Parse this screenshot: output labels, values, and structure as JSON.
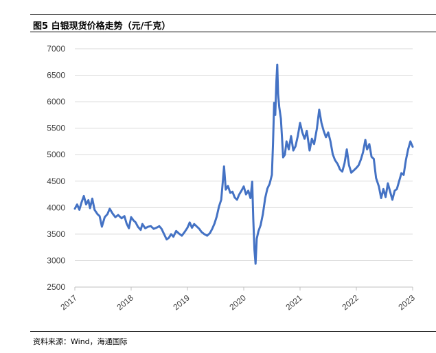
{
  "figure": {
    "title": "图5 白银现货价格走势（元/千克）",
    "source": "资料来源：Wind，海通国际"
  },
  "chart_data": {
    "type": "line",
    "title": "白银现货价格走势（元/千克）",
    "xlabel": "",
    "ylabel": "",
    "x_ticks": [
      "2017",
      "2018",
      "2019",
      "2020",
      "2021",
      "2022",
      "2023"
    ],
    "y_ticks": [
      "2500",
      "3000",
      "3500",
      "4000",
      "4500",
      "5000",
      "5500",
      "6000",
      "6500",
      "7000"
    ],
    "ylim": [
      2500,
      7000
    ],
    "xlim": [
      2017.0,
      2023.0
    ],
    "grid": "horizontal",
    "line_color": "#4472C4",
    "series": [
      {
        "values": [
          [
            2017.0,
            3980
          ],
          [
            2017.04,
            4060
          ],
          [
            2017.08,
            3960
          ],
          [
            2017.12,
            4100
          ],
          [
            2017.16,
            4220
          ],
          [
            2017.2,
            4060
          ],
          [
            2017.24,
            4140
          ],
          [
            2017.27,
            3990
          ],
          [
            2017.31,
            4170
          ],
          [
            2017.35,
            3960
          ],
          [
            2017.4,
            3880
          ],
          [
            2017.44,
            3840
          ],
          [
            2017.48,
            3640
          ],
          [
            2017.53,
            3820
          ],
          [
            2017.58,
            3880
          ],
          [
            2017.62,
            3980
          ],
          [
            2017.67,
            3890
          ],
          [
            2017.72,
            3820
          ],
          [
            2017.77,
            3860
          ],
          [
            2017.83,
            3800
          ],
          [
            2017.88,
            3840
          ],
          [
            2017.92,
            3700
          ],
          [
            2017.96,
            3610
          ],
          [
            2018.0,
            3820
          ],
          [
            2018.04,
            3760
          ],
          [
            2018.08,
            3720
          ],
          [
            2018.12,
            3640
          ],
          [
            2018.17,
            3580
          ],
          [
            2018.2,
            3690
          ],
          [
            2018.25,
            3610
          ],
          [
            2018.3,
            3640
          ],
          [
            2018.35,
            3650
          ],
          [
            2018.4,
            3600
          ],
          [
            2018.45,
            3620
          ],
          [
            2018.5,
            3650
          ],
          [
            2018.54,
            3600
          ],
          [
            2018.58,
            3510
          ],
          [
            2018.63,
            3400
          ],
          [
            2018.67,
            3430
          ],
          [
            2018.71,
            3500
          ],
          [
            2018.75,
            3450
          ],
          [
            2018.8,
            3560
          ],
          [
            2018.85,
            3510
          ],
          [
            2018.9,
            3470
          ],
          [
            2018.95,
            3540
          ],
          [
            2019.0,
            3620
          ],
          [
            2019.04,
            3720
          ],
          [
            2019.08,
            3620
          ],
          [
            2019.12,
            3690
          ],
          [
            2019.17,
            3640
          ],
          [
            2019.21,
            3600
          ],
          [
            2019.25,
            3540
          ],
          [
            2019.3,
            3500
          ],
          [
            2019.35,
            3470
          ],
          [
            2019.4,
            3520
          ],
          [
            2019.44,
            3600
          ],
          [
            2019.48,
            3700
          ],
          [
            2019.52,
            3830
          ],
          [
            2019.56,
            4020
          ],
          [
            2019.6,
            4150
          ],
          [
            2019.63,
            4520
          ],
          [
            2019.65,
            4780
          ],
          [
            2019.68,
            4340
          ],
          [
            2019.72,
            4410
          ],
          [
            2019.76,
            4280
          ],
          [
            2019.8,
            4300
          ],
          [
            2019.84,
            4190
          ],
          [
            2019.88,
            4150
          ],
          [
            2019.92,
            4250
          ],
          [
            2019.96,
            4320
          ],
          [
            2020.0,
            4400
          ],
          [
            2020.04,
            4250
          ],
          [
            2020.08,
            4320
          ],
          [
            2020.12,
            4180
          ],
          [
            2020.15,
            4490
          ],
          [
            2020.17,
            3780
          ],
          [
            2020.19,
            3200
          ],
          [
            2020.21,
            2940
          ],
          [
            2020.23,
            3410
          ],
          [
            2020.26,
            3550
          ],
          [
            2020.3,
            3670
          ],
          [
            2020.34,
            3880
          ],
          [
            2020.38,
            4180
          ],
          [
            2020.42,
            4360
          ],
          [
            2020.46,
            4450
          ],
          [
            2020.5,
            4620
          ],
          [
            2020.52,
            5200
          ],
          [
            2020.54,
            5980
          ],
          [
            2020.56,
            5750
          ],
          [
            2020.58,
            6400
          ],
          [
            2020.595,
            6700
          ],
          [
            2020.61,
            6150
          ],
          [
            2020.63,
            5900
          ],
          [
            2020.66,
            5680
          ],
          [
            2020.7,
            4950
          ],
          [
            2020.73,
            5000
          ],
          [
            2020.76,
            5250
          ],
          [
            2020.8,
            5100
          ],
          [
            2020.84,
            5350
          ],
          [
            2020.88,
            5080
          ],
          [
            2020.92,
            5160
          ],
          [
            2020.96,
            5350
          ],
          [
            2021.0,
            5600
          ],
          [
            2021.04,
            5420
          ],
          [
            2021.08,
            5300
          ],
          [
            2021.12,
            5450
          ],
          [
            2021.17,
            5080
          ],
          [
            2021.21,
            5300
          ],
          [
            2021.25,
            5200
          ],
          [
            2021.3,
            5500
          ],
          [
            2021.34,
            5850
          ],
          [
            2021.38,
            5600
          ],
          [
            2021.42,
            5450
          ],
          [
            2021.46,
            5330
          ],
          [
            2021.5,
            5420
          ],
          [
            2021.54,
            5250
          ],
          [
            2021.58,
            5010
          ],
          [
            2021.62,
            4900
          ],
          [
            2021.67,
            4820
          ],
          [
            2021.71,
            4720
          ],
          [
            2021.75,
            4680
          ],
          [
            2021.79,
            4840
          ],
          [
            2021.83,
            5100
          ],
          [
            2021.87,
            4800
          ],
          [
            2021.91,
            4660
          ],
          [
            2021.95,
            4700
          ],
          [
            2022.0,
            4750
          ],
          [
            2022.04,
            4800
          ],
          [
            2022.08,
            4910
          ],
          [
            2022.12,
            5050
          ],
          [
            2022.16,
            5280
          ],
          [
            2022.19,
            5100
          ],
          [
            2022.23,
            5200
          ],
          [
            2022.27,
            4960
          ],
          [
            2022.31,
            4920
          ],
          [
            2022.35,
            4560
          ],
          [
            2022.4,
            4400
          ],
          [
            2022.44,
            4180
          ],
          [
            2022.48,
            4350
          ],
          [
            2022.52,
            4200
          ],
          [
            2022.56,
            4460
          ],
          [
            2022.6,
            4300
          ],
          [
            2022.64,
            4150
          ],
          [
            2022.68,
            4320
          ],
          [
            2022.72,
            4350
          ],
          [
            2022.76,
            4500
          ],
          [
            2022.8,
            4650
          ],
          [
            2022.84,
            4620
          ],
          [
            2022.88,
            4900
          ],
          [
            2022.92,
            5100
          ],
          [
            2022.96,
            5250
          ],
          [
            2023.0,
            5150
          ]
        ]
      }
    ]
  }
}
